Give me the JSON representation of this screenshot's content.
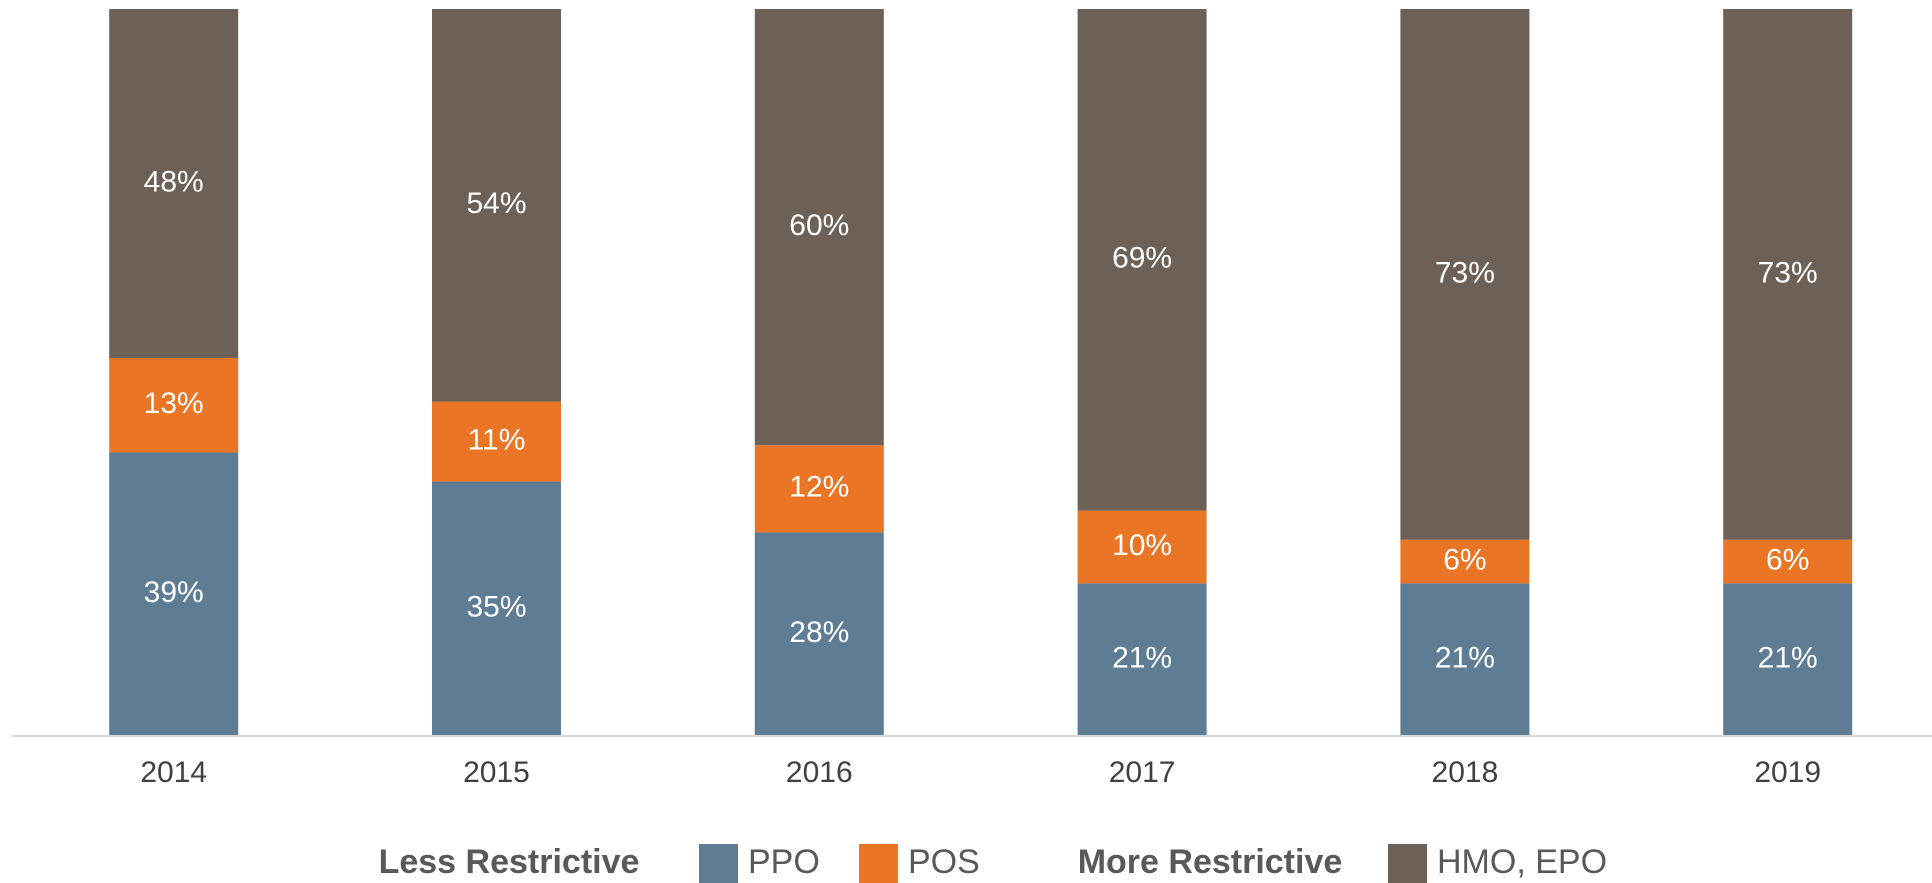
{
  "chart_data": {
    "type": "stacked_bar",
    "categories": [
      "2014",
      "2015",
      "2016",
      "2017",
      "2018",
      "2019"
    ],
    "series": [
      {
        "name": "PPO",
        "color": "#5e7d95",
        "values": [
          39,
          35,
          28,
          21,
          21,
          21
        ],
        "value_labels": [
          "39%",
          "35%",
          "28%",
          "21%",
          "21%",
          "21%"
        ]
      },
      {
        "name": "POS",
        "color": "#ea7525",
        "values": [
          13,
          11,
          12,
          10,
          6,
          6
        ],
        "value_labels": [
          "13%",
          "11%",
          "12%",
          "10%",
          "6%",
          "6%"
        ]
      },
      {
        "name": "HMO, EPO",
        "color": "#6d6157",
        "values": [
          48,
          54,
          60,
          69,
          73,
          73
        ],
        "value_labels": [
          "48%",
          "54%",
          "60%",
          "69%",
          "73%",
          "73%"
        ]
      }
    ],
    "legend_groups": [
      "Less Restrictive",
      "More Restrictive"
    ],
    "ylim": [
      0,
      100
    ],
    "legend": "bottom"
  }
}
